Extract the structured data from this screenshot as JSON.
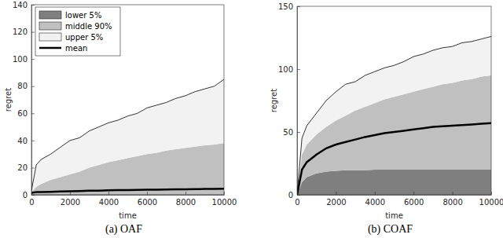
{
  "chart_data": [
    {
      "type": "area",
      "title": "(a) OAF",
      "x_label": "time",
      "y_label": "regret",
      "stacked": true,
      "legend": "upper left",
      "x": [
        0,
        250,
        500,
        1000,
        1500,
        2000,
        2500,
        3000,
        3500,
        4000,
        4500,
        5000,
        5500,
        6000,
        6500,
        7000,
        7500,
        8000,
        8500,
        9000,
        9500,
        10000
      ],
      "xlim": [
        0,
        10000
      ],
      "xticks": [
        0,
        2000,
        4000,
        6000,
        8000,
        10000
      ],
      "ylim": [
        0,
        140
      ],
      "yticks": [
        0,
        20,
        40,
        60,
        80,
        100,
        120,
        140
      ],
      "series": [
        {
          "name": "lower 5%",
          "type": "area",
          "color": "#7f7f7f",
          "values": [
            0.5,
            0.5,
            0.5,
            0.5,
            0.5,
            0.5,
            0.5,
            0.5,
            0.5,
            0.5,
            0.5,
            0.5,
            0.5,
            0.5,
            0.5,
            0.5,
            0.5,
            0.5,
            0.5,
            0.5,
            0.5,
            0.5
          ]
        },
        {
          "name": "middle 90%",
          "type": "area",
          "color": "#c0c0c0",
          "values": [
            1.5,
            5.5,
            7.5,
            10.5,
            12.5,
            14.5,
            16.5,
            19.5,
            21.5,
            23.5,
            25,
            26.5,
            28,
            29.5,
            30.5,
            32,
            33,
            34,
            35,
            36,
            36.5,
            37.5
          ]
        },
        {
          "name": "upper 5%",
          "type": "area",
          "color": "#f2f2f2",
          "values": [
            1,
            16,
            18,
            19,
            22,
            25,
            25,
            27,
            28,
            29,
            29.5,
            31,
            31.5,
            34,
            35,
            35.5,
            37.5,
            38.5,
            40.5,
            41.5,
            43,
            47
          ]
        },
        {
          "name": "mean",
          "type": "line",
          "color": "#000000",
          "values": [
            1.5,
            2,
            2,
            2.2,
            2.4,
            2.6,
            2.8,
            3,
            3.1,
            3.3,
            3.4,
            3.5,
            3.6,
            3.7,
            3.8,
            3.9,
            4,
            4.1,
            4.2,
            4.3,
            4.4,
            4.5
          ]
        }
      ]
    },
    {
      "type": "area",
      "title": "(b) COAF",
      "x_label": "time",
      "y_label": "regret",
      "stacked": true,
      "x": [
        0,
        250,
        500,
        1000,
        1500,
        2000,
        2500,
        3000,
        3500,
        4000,
        4500,
        5000,
        5500,
        6000,
        6500,
        7000,
        7500,
        8000,
        8500,
        9000,
        9500,
        10000
      ],
      "xlim": [
        0,
        10000
      ],
      "xticks": [
        0,
        2000,
        4000,
        6000,
        8000,
        10000
      ],
      "ylim": [
        0,
        150
      ],
      "yticks": [
        0,
        50,
        100,
        150
      ],
      "series": [
        {
          "type": "area",
          "color": "#7f7f7f",
          "values": [
            0,
            10,
            14,
            17,
            18.5,
            19,
            19.5,
            19.5,
            19.5,
            20,
            20,
            20,
            20,
            20,
            20,
            20,
            20,
            20,
            20,
            20,
            20,
            20
          ]
        },
        {
          "type": "area",
          "color": "#c0c0c0",
          "values": [
            0,
            22,
            26,
            31,
            35.5,
            40,
            43.5,
            47.5,
            50.5,
            53,
            56,
            58,
            60,
            62,
            64,
            66,
            68,
            69,
            71,
            72,
            74,
            75
          ]
        },
        {
          "type": "area",
          "color": "#f2f2f2",
          "values": [
            0,
            13,
            15,
            17,
            21,
            23,
            25,
            23,
            25,
            25,
            25,
            25,
            26,
            28,
            28,
            29,
            29,
            29,
            30,
            30,
            30,
            31
          ]
        },
        {
          "type": "line",
          "color": "#000000",
          "values": [
            0,
            20,
            26,
            32,
            37,
            40,
            42,
            44,
            46,
            47.5,
            49,
            50,
            51,
            52,
            53,
            54,
            54.5,
            55,
            55.5,
            56,
            56.5,
            57
          ]
        }
      ]
    }
  ]
}
